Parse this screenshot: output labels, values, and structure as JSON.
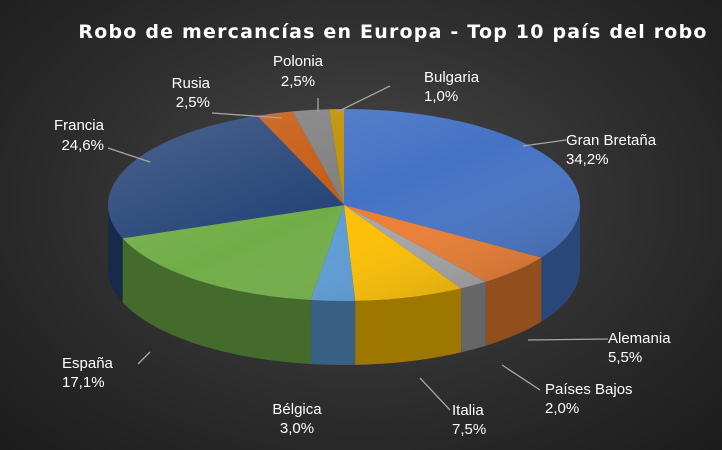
{
  "chart_data": {
    "type": "pie",
    "title": "Robo de mercancías en Europa - Top 10 país del robo",
    "slices": [
      {
        "name": "Gran Bretaña",
        "value": 34.2,
        "value_label": "34,2%",
        "color": "#4472C4"
      },
      {
        "name": "Alemania",
        "value": 5.5,
        "value_label": "5,5%",
        "color": "#ED7D31"
      },
      {
        "name": "Países Bajos",
        "value": 2.0,
        "value_label": "2,0%",
        "color": "#A5A5A5"
      },
      {
        "name": "Italia",
        "value": 7.5,
        "value_label": "7,5%",
        "color": "#FFC000"
      },
      {
        "name": "Bélgica",
        "value": 3.0,
        "value_label": "3,0%",
        "color": "#5B9BD5"
      },
      {
        "name": "España",
        "value": 17.1,
        "value_label": "17,1%",
        "color": "#70AD47"
      },
      {
        "name": "Francia",
        "value": 24.6,
        "value_label": "24,6%",
        "color": "#264478"
      },
      {
        "name": "Rusia",
        "value": 2.5,
        "value_label": "2,5%",
        "color": "#C55A11"
      },
      {
        "name": "Polonia",
        "value": 2.5,
        "value_label": "2,5%",
        "color": "#7F7F7F"
      },
      {
        "name": "Bulgaria",
        "value": 1.0,
        "value_label": "1,0%",
        "color": "#BF8F00"
      }
    ]
  }
}
